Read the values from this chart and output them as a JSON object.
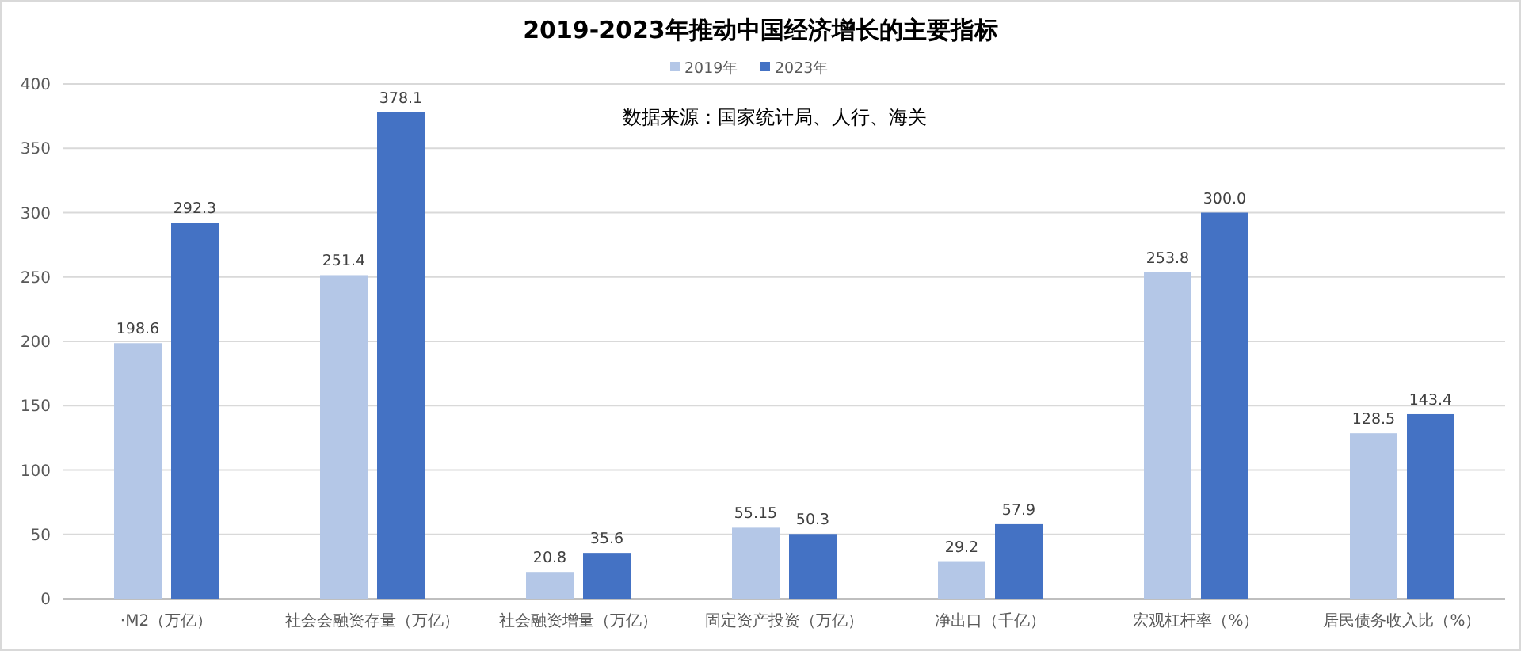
{
  "chart_data": {
    "type": "bar",
    "title": "2019-2023年推动中国经济增长的主要指标",
    "categories": [
      "·M2（万亿）",
      "社会会融资存量（万亿）",
      "社会融资增量（万亿）",
      "固定资产投资（万亿）",
      "净出口（千亿）",
      "宏观杠杆率（%）",
      "居民债务收入比（%）"
    ],
    "series": [
      {
        "name": "2019年",
        "color": "#b4c7e7",
        "values": [
          198.6,
          251.4,
          20.8,
          55.15,
          29.2,
          253.8,
          128.5
        ],
        "value_labels": [
          "198.6",
          "251.4",
          "20.8",
          "55.15",
          "29.2",
          "253.8",
          "128.5"
        ]
      },
      {
        "name": "2023年",
        "color": "#4472c4",
        "values": [
          292.3,
          378.1,
          35.6,
          50.3,
          57.9,
          300.0,
          143.4
        ],
        "value_labels": [
          "292.3",
          "378.1",
          "35.6",
          "50.3",
          "57.9",
          "300.0",
          "143.4"
        ]
      }
    ],
    "ylim": [
      0,
      400
    ],
    "yticks": [
      0,
      50,
      100,
      150,
      200,
      250,
      300,
      350,
      400
    ],
    "grid": "y",
    "legend": "top",
    "annotations": [
      "数据来源：国家统计局、人行、海关"
    ]
  }
}
